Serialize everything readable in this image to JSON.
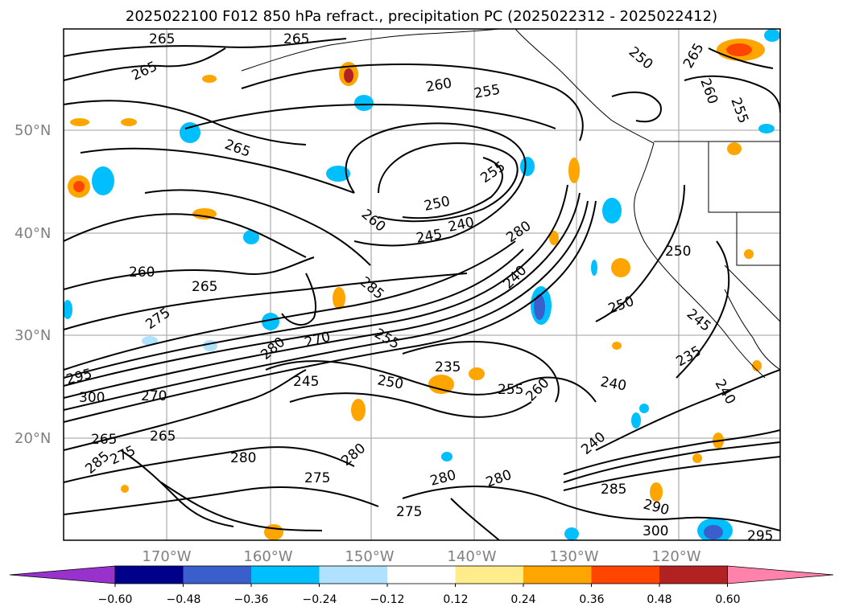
{
  "title": "2025022100 F012 850 hPa refract., precipitation PC (2025022312 - 2025022412)",
  "map": {
    "lat_labels": [
      "50°N",
      "40°N",
      "30°N",
      "20°N"
    ],
    "lon_labels": [
      "170°W",
      "160°W",
      "150°W",
      "140°W",
      "130°W",
      "120°W"
    ],
    "contour_labels": [
      "265",
      "265",
      "265",
      "260",
      "255",
      "265",
      "255",
      "250",
      "240",
      "245",
      "260",
      "280",
      "260",
      "265",
      "285",
      "240",
      "275",
      "280",
      "270",
      "255",
      "250",
      "245",
      "235",
      "255",
      "260",
      "240",
      "295",
      "300",
      "270",
      "265",
      "265",
      "275",
      "285",
      "280",
      "275",
      "280",
      "280",
      "275",
      "280",
      "250",
      "250",
      "245",
      "235",
      "240",
      "265",
      "260",
      "255",
      "250",
      "240",
      "300",
      "295",
      "285",
      "290"
    ]
  },
  "colorbar": {
    "ticks": [
      "−0.60",
      "−0.48",
      "−0.36",
      "−0.24",
      "−0.12",
      "0.12",
      "0.24",
      "0.36",
      "0.48",
      "0.60"
    ],
    "colors": [
      "#9932cc",
      "#00008b",
      "#3a5fcd",
      "#00bfff",
      "#b0e2ff",
      "#ffffff",
      "#ffec8b",
      "#ffa500",
      "#ff4500",
      "#b22222",
      "#ff82ab"
    ]
  }
}
